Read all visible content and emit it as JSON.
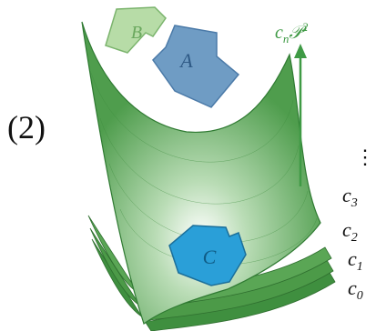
{
  "panel_label": "(2)",
  "shapes": [
    {
      "label": "B"
    },
    {
      "label": "A"
    },
    {
      "label": "C"
    }
  ],
  "arrow_label": {
    "base": "c",
    "sub": "n",
    "term": "𝒫",
    "sup": "2"
  },
  "ellipsis": "⋮",
  "levels": [
    {
      "base": "c",
      "sub": "3"
    },
    {
      "base": "c",
      "sub": "2"
    },
    {
      "base": "c",
      "sub": "1"
    },
    {
      "base": "c",
      "sub": "0"
    }
  ]
}
